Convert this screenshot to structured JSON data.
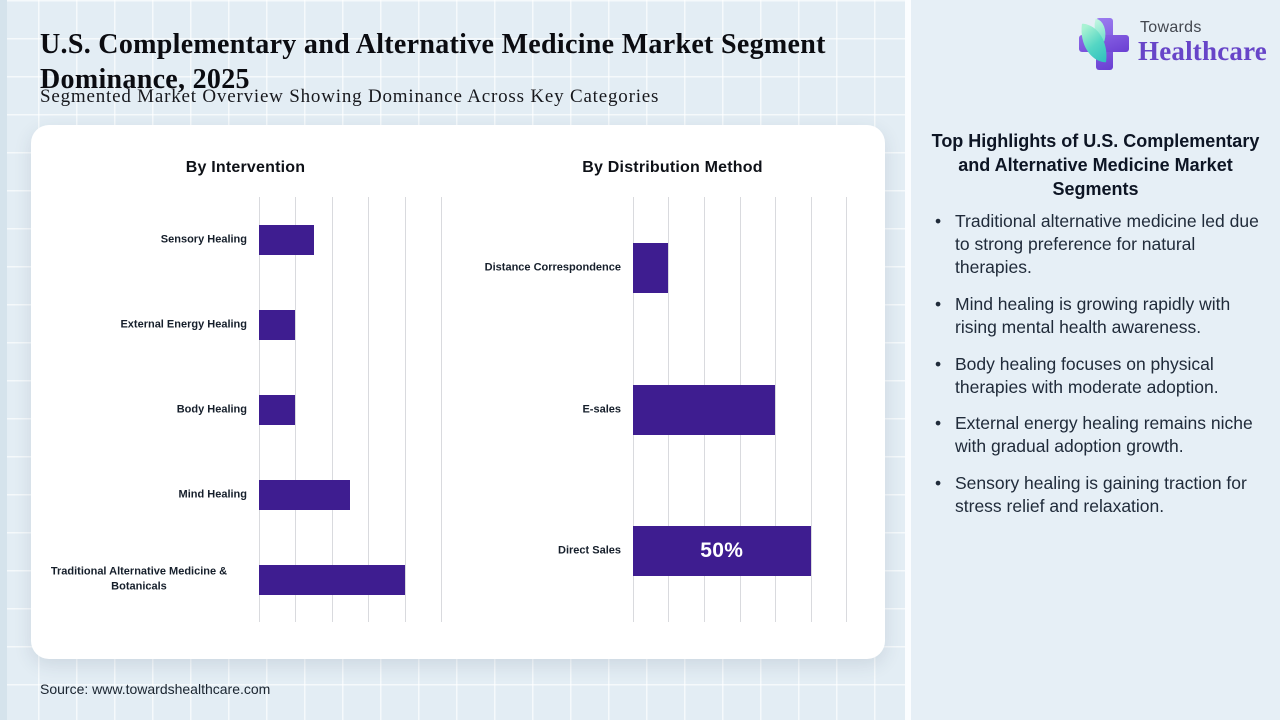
{
  "header": {
    "title": "U.S. Complementary and Alternative Medicine Market Segment Dominance, 2025",
    "subtitle": "Segmented Market Overview Showing Dominance Across Key Categories"
  },
  "logo": {
    "name_top": "Towards",
    "name_bottom": "Healthcare"
  },
  "sidebar": {
    "title": "Top Highlights of U.S. Complementary and Alternative Medicine Market Segments",
    "bullets": [
      "Traditional alternative medicine led due to strong preference for natural therapies.",
      "Mind healing is growing rapidly with rising mental health awareness.",
      "Body healing focuses on physical therapies with moderate adoption.",
      "External energy healing remains niche with gradual adoption growth.",
      "Sensory healing is gaining traction for stress relief and relaxation."
    ]
  },
  "source": "Source: www.towardshealthcare.com",
  "colors": {
    "bar": "#3e1d90",
    "accent_purple": "#6745c8",
    "leaf_teal": "#2fbfbf",
    "main_background": "#e3edf4",
    "sidebar_background": "#e6eff6"
  },
  "chart_data": [
    {
      "type": "bar",
      "orientation": "horizontal",
      "title": "By Intervention",
      "categories": [
        "Sensory Healing",
        "External Energy Healing",
        "Body Healing",
        "Mind Healing",
        "Traditional Alternative Medicine & Botanicals"
      ],
      "values": [
        15,
        10,
        10,
        25,
        40
      ],
      "unit": "%",
      "xlim": [
        0,
        50
      ],
      "grid_step": 10,
      "grid": true,
      "legend": "none",
      "bar_labels": [
        "",
        "",
        "",
        "",
        ""
      ]
    },
    {
      "type": "bar",
      "orientation": "horizontal",
      "title": "By Distribution Method",
      "categories": [
        "Distance Correspondence",
        "E-sales",
        "Direct Sales"
      ],
      "values": [
        10,
        40,
        50
      ],
      "unit": "%",
      "xlim": [
        0,
        60
      ],
      "grid_step": 10,
      "grid": true,
      "legend": "none",
      "bar_labels": [
        "",
        "",
        "50%"
      ]
    }
  ]
}
